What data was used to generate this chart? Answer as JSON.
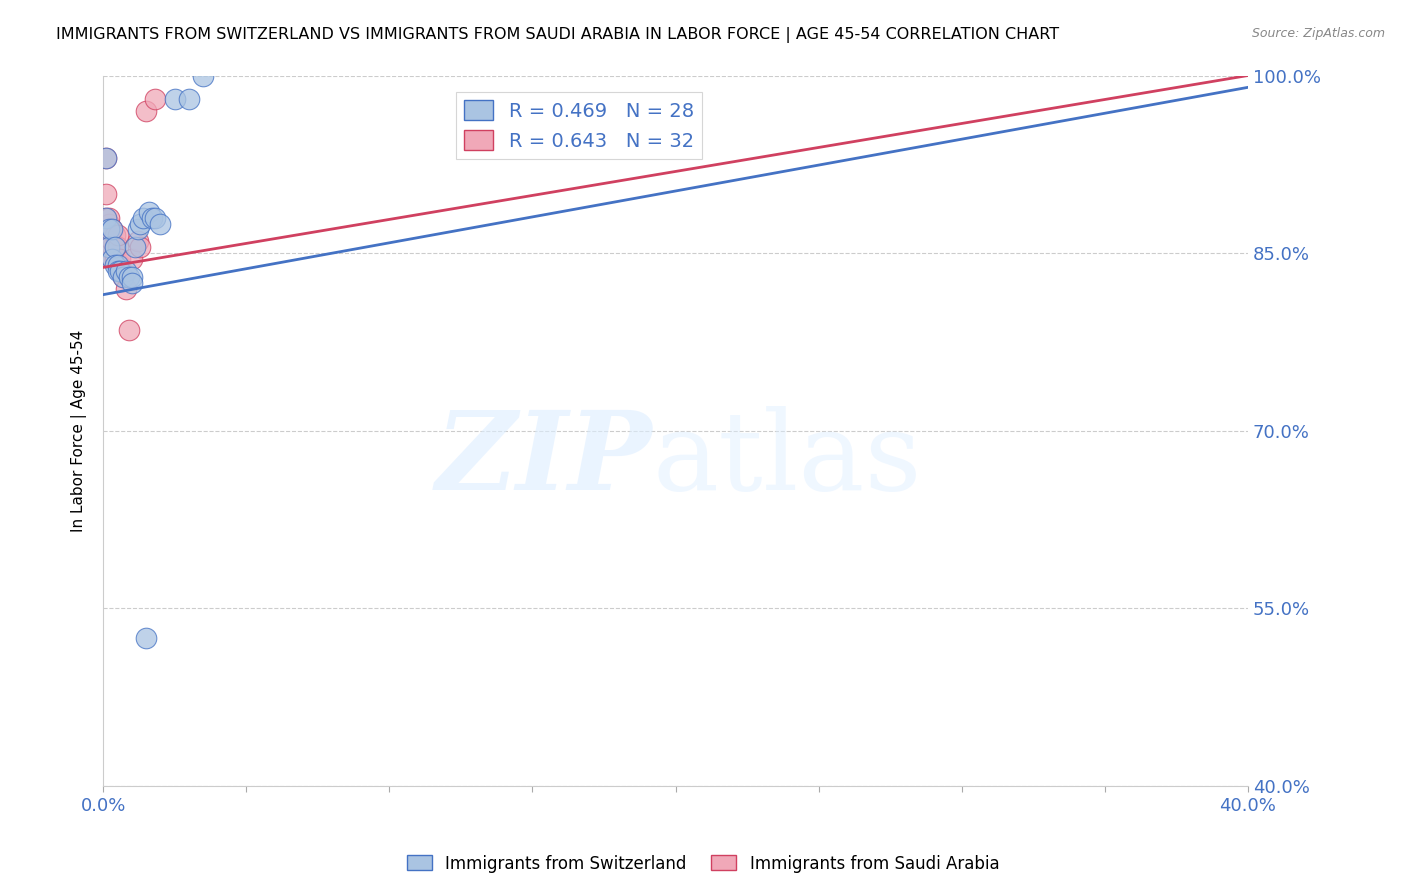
{
  "title": "IMMIGRANTS FROM SWITZERLAND VS IMMIGRANTS FROM SAUDI ARABIA IN LABOR FORCE | AGE 45-54 CORRELATION CHART",
  "source": "Source: ZipAtlas.com",
  "ylabel": "In Labor Force | Age 45-54",
  "xlim": [
    0.0,
    0.4
  ],
  "ylim": [
    0.4,
    1.0
  ],
  "xticks": [
    0.0,
    0.05,
    0.1,
    0.15,
    0.2,
    0.25,
    0.3,
    0.35,
    0.4
  ],
  "ytick_values": [
    0.4,
    0.55,
    0.7,
    0.85,
    1.0
  ],
  "ytick_labels": [
    "40.0%",
    "55.0%",
    "70.0%",
    "85.0%",
    "100.0%"
  ],
  "switzerland_color": "#aac4e2",
  "saudi_color": "#f0a8b8",
  "trend_blue": "#4472c4",
  "trend_pink": "#d04060",
  "legend_r_swiss": "R = 0.469",
  "legend_n_swiss": "N = 28",
  "legend_r_saudi": "R = 0.643",
  "legend_n_saudi": "N = 32",
  "switzerland_x": [
    0.001,
    0.001,
    0.002,
    0.002,
    0.003,
    0.003,
    0.004,
    0.004,
    0.005,
    0.005,
    0.006,
    0.007,
    0.008,
    0.009,
    0.01,
    0.01,
    0.011,
    0.012,
    0.013,
    0.014,
    0.015,
    0.016,
    0.017,
    0.018,
    0.02,
    0.025,
    0.03,
    0.035
  ],
  "switzerland_y": [
    0.93,
    0.88,
    0.87,
    0.855,
    0.87,
    0.845,
    0.855,
    0.84,
    0.84,
    0.835,
    0.835,
    0.83,
    0.835,
    0.83,
    0.83,
    0.825,
    0.855,
    0.87,
    0.875,
    0.88,
    0.525,
    0.885,
    0.88,
    0.88,
    0.875,
    0.98,
    0.98,
    1.0
  ],
  "saudi_x": [
    0.001,
    0.001,
    0.001,
    0.001,
    0.001,
    0.001,
    0.001,
    0.002,
    0.002,
    0.002,
    0.002,
    0.002,
    0.003,
    0.003,
    0.003,
    0.003,
    0.004,
    0.004,
    0.004,
    0.005,
    0.005,
    0.005,
    0.006,
    0.006,
    0.007,
    0.008,
    0.009,
    0.01,
    0.012,
    0.013,
    0.015,
    0.018
  ],
  "saudi_y": [
    0.855,
    0.86,
    0.865,
    0.87,
    0.88,
    0.9,
    0.93,
    0.855,
    0.86,
    0.865,
    0.875,
    0.88,
    0.845,
    0.855,
    0.86,
    0.87,
    0.845,
    0.855,
    0.865,
    0.84,
    0.855,
    0.865,
    0.84,
    0.845,
    0.83,
    0.82,
    0.785,
    0.845,
    0.86,
    0.855,
    0.97,
    0.98
  ],
  "trend_sw_x0": 0.0,
  "trend_sw_y0": 0.815,
  "trend_sw_x1": 0.4,
  "trend_sw_y1": 0.99,
  "trend_sa_x0": 0.0,
  "trend_sa_y0": 0.838,
  "trend_sa_x1": 0.4,
  "trend_sa_y1": 1.0
}
